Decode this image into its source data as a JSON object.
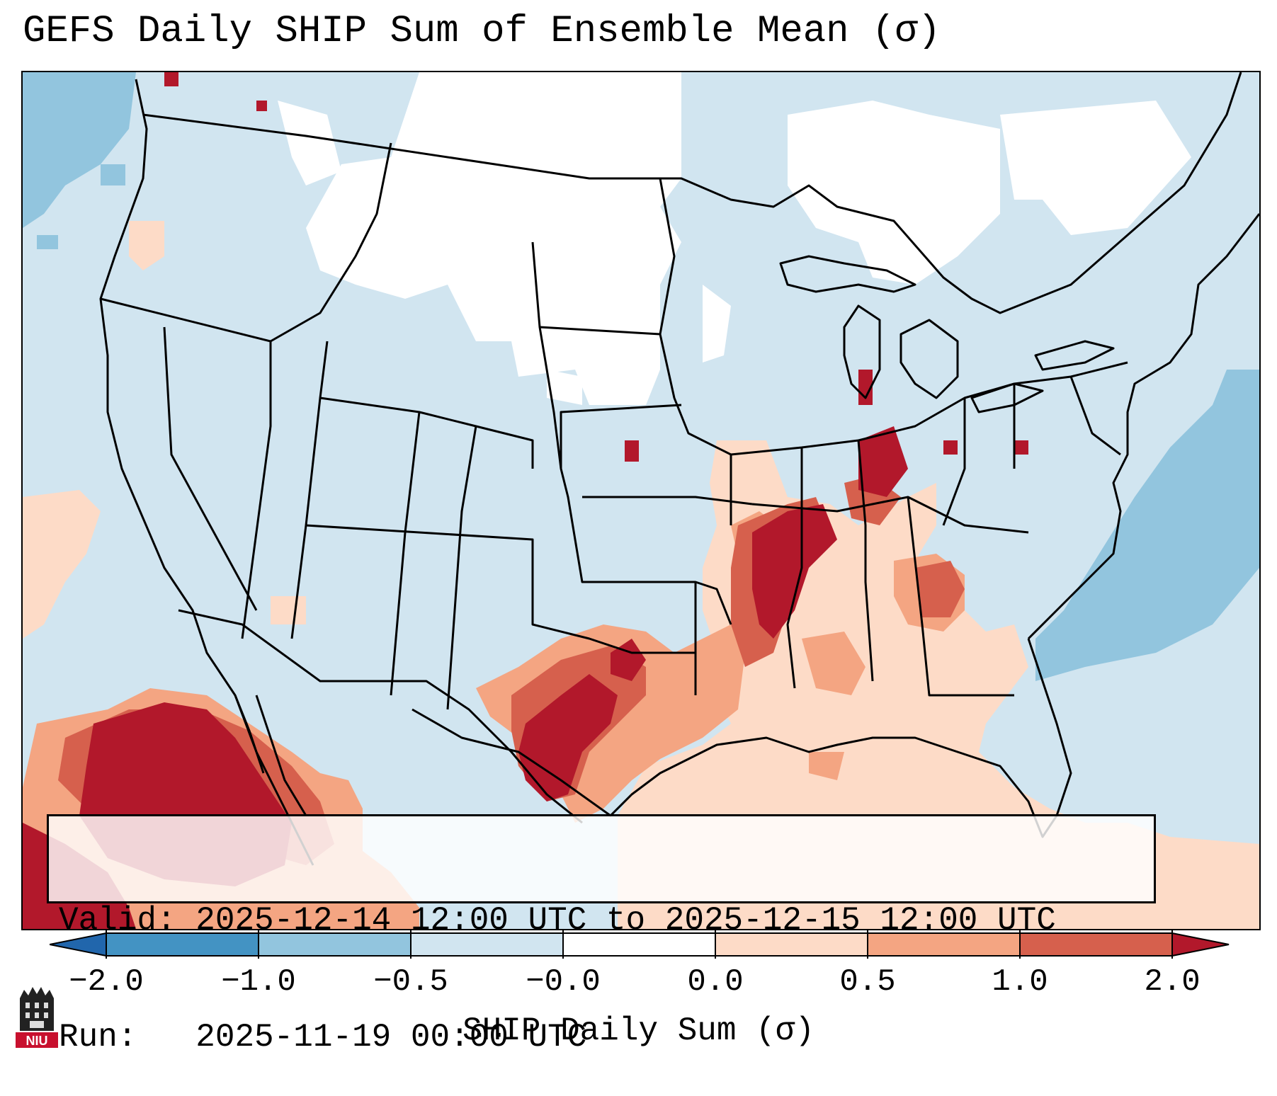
{
  "title": "GEFS Daily SHIP Sum of Ensemble Mean (σ)",
  "info_box": {
    "valid_line": "Valid: 2025-12-14 12:00 UTC to 2025-12-15 12:00 UTC",
    "run_line": "Run:   2025-11-19 00:00 UTC"
  },
  "colorbar": {
    "label": "SHIP Daily Sum (σ)",
    "ticks": [
      "−2.0",
      "−1.0",
      "−0.5",
      "−0.0",
      "0.0",
      "0.5",
      "1.0",
      "2.0"
    ],
    "colors": [
      "#2166ac",
      "#4393c3",
      "#92c5de",
      "#d1e5f0",
      "#ffffff",
      "#fddbc7",
      "#f4a582",
      "#d6604d",
      "#b2182b"
    ]
  },
  "logo": {
    "text": "NIU",
    "icon": "niu-logo-icon"
  },
  "chart_data": {
    "type": "heatmap",
    "title": "GEFS Daily SHIP Sum of Ensemble Mean (σ)",
    "region": "Continental United States",
    "bins": [
      {
        "range": "< -2.0",
        "color": "#2166ac"
      },
      {
        "range": "-2.0 to -1.0",
        "color": "#4393c3"
      },
      {
        "range": "-1.0 to -0.5",
        "color": "#92c5de"
      },
      {
        "range": "-0.5 to -0.0",
        "color": "#d1e5f0"
      },
      {
        "range": "-0.0 to 0.0",
        "color": "#ffffff"
      },
      {
        "range": "0.0 to 0.5",
        "color": "#fddbc7"
      },
      {
        "range": "0.5 to 1.0",
        "color": "#f4a582"
      },
      {
        "range": "1.0 to 2.0",
        "color": "#d6604d"
      },
      {
        "range": "> 2.0",
        "color": "#b2182b"
      }
    ],
    "xlabel": "SHIP Daily Sum (σ)"
  }
}
